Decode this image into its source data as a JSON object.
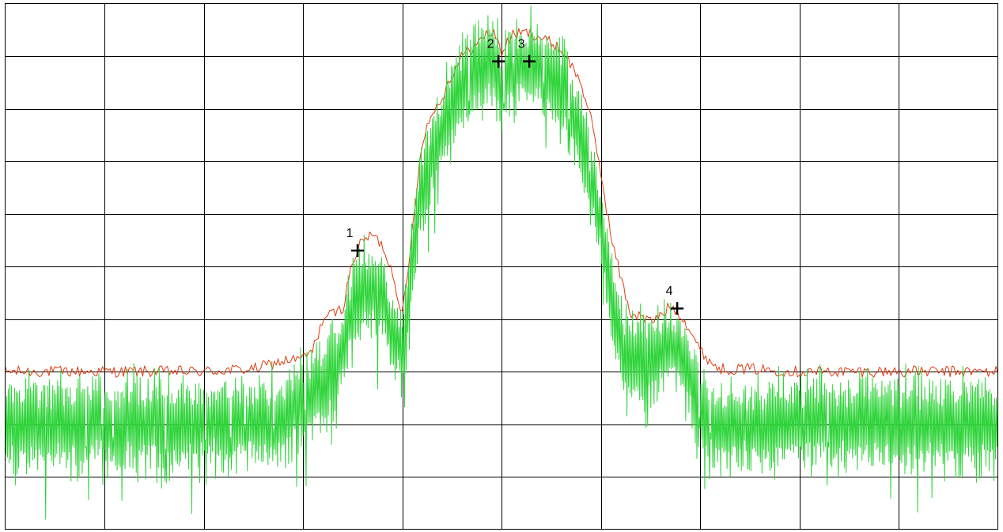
{
  "chart_data": {
    "type": "line",
    "title": "",
    "xlabel": "",
    "ylabel": "",
    "xlim": [
      0,
      10
    ],
    "ylim": [
      -10,
      0
    ],
    "grid": true,
    "grid_divisions": {
      "x": 10,
      "y": 10
    },
    "x_ticks": [],
    "y_ticks": [],
    "legend": "none",
    "series": [
      {
        "style": "max-hold",
        "color": "#e23b10",
        "points": [
          [
            0.0,
            -7.0
          ],
          [
            0.5,
            -7.0
          ],
          [
            1.0,
            -7.0
          ],
          [
            1.5,
            -7.0
          ],
          [
            2.0,
            -7.0
          ],
          [
            2.5,
            -6.95
          ],
          [
            2.8,
            -6.8
          ],
          [
            3.0,
            -6.75
          ],
          [
            3.1,
            -6.6
          ],
          [
            3.2,
            -6.0
          ],
          [
            3.4,
            -5.8
          ],
          [
            3.5,
            -4.9
          ],
          [
            3.6,
            -4.5
          ],
          [
            3.7,
            -4.4
          ],
          [
            3.8,
            -4.6
          ],
          [
            3.9,
            -5.1
          ],
          [
            4.0,
            -5.9
          ],
          [
            4.05,
            -5.3
          ],
          [
            4.1,
            -4.3
          ],
          [
            4.2,
            -2.6
          ],
          [
            4.3,
            -2.1
          ],
          [
            4.4,
            -1.8
          ],
          [
            4.5,
            -1.35
          ],
          [
            4.6,
            -1.0
          ],
          [
            4.7,
            -0.85
          ],
          [
            4.8,
            -0.7
          ],
          [
            4.85,
            -0.55
          ],
          [
            4.95,
            -0.6
          ],
          [
            5.0,
            -0.95
          ],
          [
            5.1,
            -0.6
          ],
          [
            5.25,
            -0.55
          ],
          [
            5.35,
            -0.6
          ],
          [
            5.45,
            -0.7
          ],
          [
            5.55,
            -0.8
          ],
          [
            5.65,
            -1.0
          ],
          [
            5.8,
            -1.5
          ],
          [
            5.9,
            -2.2
          ],
          [
            6.0,
            -3.2
          ],
          [
            6.1,
            -4.4
          ],
          [
            6.2,
            -5.2
          ],
          [
            6.3,
            -5.9
          ],
          [
            6.4,
            -5.95
          ],
          [
            6.5,
            -6.05
          ],
          [
            6.6,
            -5.95
          ],
          [
            6.7,
            -5.75
          ],
          [
            6.8,
            -5.9
          ],
          [
            6.9,
            -6.2
          ],
          [
            7.0,
            -6.6
          ],
          [
            7.1,
            -6.8
          ],
          [
            7.2,
            -6.95
          ],
          [
            7.5,
            -6.95
          ],
          [
            8.0,
            -7.0
          ],
          [
            8.5,
            -7.0
          ],
          [
            9.0,
            -7.0
          ],
          [
            9.5,
            -7.0
          ],
          [
            10.0,
            -7.0
          ]
        ]
      },
      {
        "style": "clear-write",
        "color": "#2fd43a",
        "points": [
          [
            0.0,
            -8.0
          ],
          [
            0.5,
            -8.0
          ],
          [
            1.0,
            -8.0
          ],
          [
            1.5,
            -8.0
          ],
          [
            2.0,
            -8.0
          ],
          [
            2.5,
            -8.0
          ],
          [
            2.8,
            -7.9
          ],
          [
            3.0,
            -7.6
          ],
          [
            3.2,
            -7.2
          ],
          [
            3.4,
            -6.6
          ],
          [
            3.5,
            -5.9
          ],
          [
            3.6,
            -5.5
          ],
          [
            3.7,
            -5.4
          ],
          [
            3.8,
            -5.6
          ],
          [
            3.9,
            -6.3
          ],
          [
            4.0,
            -6.6
          ],
          [
            4.05,
            -5.8
          ],
          [
            4.1,
            -4.7
          ],
          [
            4.2,
            -3.6
          ],
          [
            4.3,
            -2.9
          ],
          [
            4.4,
            -2.4
          ],
          [
            4.5,
            -1.9
          ],
          [
            4.6,
            -1.6
          ],
          [
            4.7,
            -1.4
          ],
          [
            4.8,
            -1.2
          ],
          [
            4.85,
            -1.15
          ],
          [
            4.95,
            -1.25
          ],
          [
            5.0,
            -1.7
          ],
          [
            5.1,
            -1.25
          ],
          [
            5.25,
            -1.15
          ],
          [
            5.35,
            -1.2
          ],
          [
            5.45,
            -1.3
          ],
          [
            5.55,
            -1.45
          ],
          [
            5.65,
            -1.8
          ],
          [
            5.8,
            -2.5
          ],
          [
            5.9,
            -3.3
          ],
          [
            6.0,
            -4.2
          ],
          [
            6.1,
            -5.5
          ],
          [
            6.2,
            -6.4
          ],
          [
            6.3,
            -6.9
          ],
          [
            6.4,
            -6.8
          ],
          [
            6.5,
            -6.7
          ],
          [
            6.6,
            -6.6
          ],
          [
            6.7,
            -6.5
          ],
          [
            6.8,
            -6.6
          ],
          [
            6.9,
            -7.1
          ],
          [
            7.0,
            -7.6
          ],
          [
            7.1,
            -7.9
          ],
          [
            7.2,
            -8.0
          ],
          [
            7.5,
            -8.0
          ],
          [
            8.0,
            -8.0
          ],
          [
            8.5,
            -8.0
          ],
          [
            9.0,
            -8.0
          ],
          [
            9.5,
            -8.0
          ],
          [
            10.0,
            -8.0
          ]
        ]
      }
    ],
    "annotations": [
      {
        "label": "1",
        "x": 3.55,
        "y": -4.7
      },
      {
        "label": "2",
        "x": 4.97,
        "y": -1.1
      },
      {
        "label": "3",
        "x": 5.28,
        "y": -1.1
      },
      {
        "label": "4",
        "x": 6.77,
        "y": -5.8
      }
    ]
  }
}
